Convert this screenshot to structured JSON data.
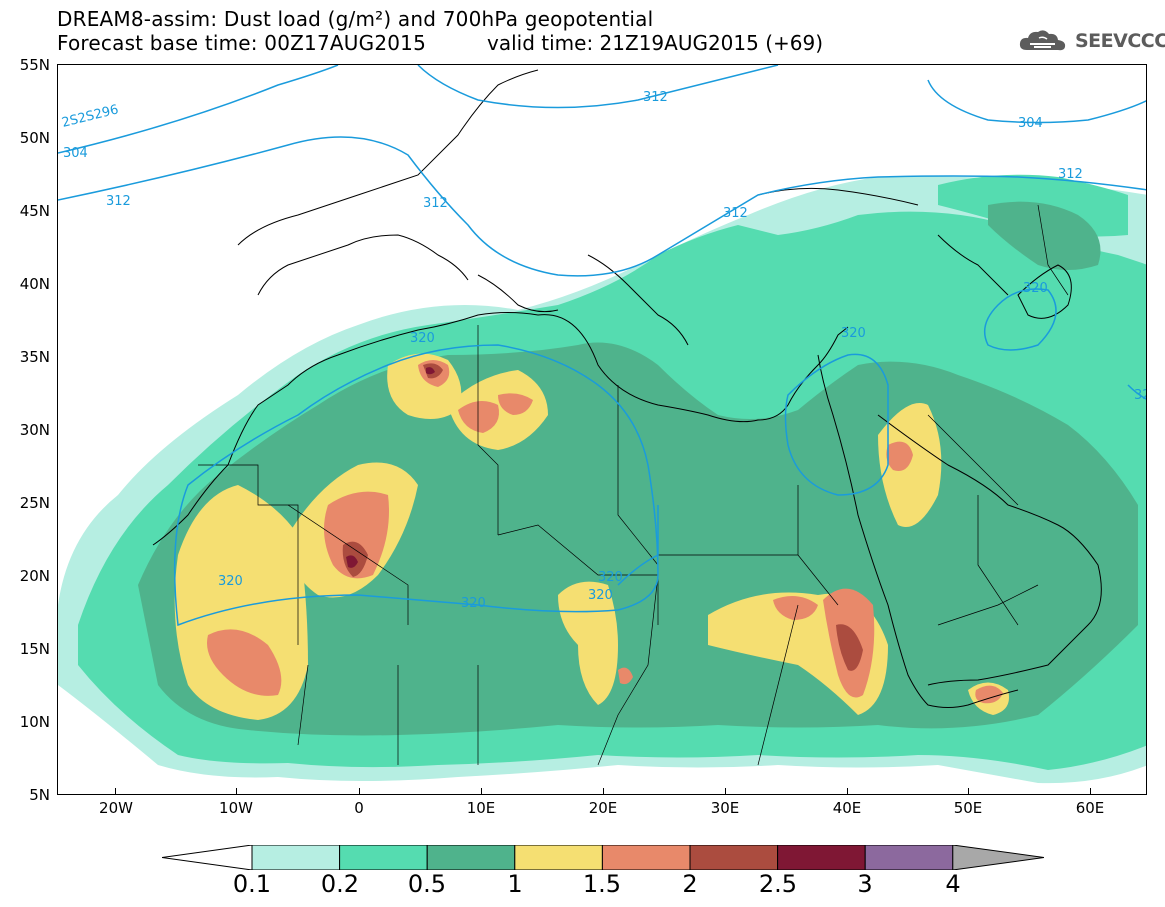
{
  "header": {
    "title": "DREAM8-assim: Dust load (g/m²) and 700hPa geopotential",
    "base_time": "Forecast base time: 00Z17AUG2015",
    "valid_time": "valid time: 21Z19AUG2015 (+69)"
  },
  "logo": {
    "text": "SEEVCCC",
    "icon": "cloud-icon"
  },
  "map": {
    "lat_labels": [
      "55N",
      "50N",
      "45N",
      "40N",
      "35N",
      "30N",
      "25N",
      "20N",
      "15N",
      "10N",
      "5N"
    ],
    "lon_labels": [
      "20W",
      "10W",
      "0",
      "10E",
      "20E",
      "30E",
      "40E",
      "50E",
      "60E"
    ],
    "contour_labels": [
      "2S2S296",
      "304",
      "312",
      "312",
      "312",
      "312",
      "312",
      "304",
      "320",
      "320",
      "320",
      "320",
      "320",
      "320",
      "32"
    ]
  },
  "colorbar": {
    "labels": [
      "0.1",
      "0.2",
      "0.5",
      "1",
      "1.5",
      "2",
      "2.5",
      "3",
      "4"
    ],
    "colors": [
      "#b6eee2",
      "#55dcb0",
      "#4fb38c",
      "#f5df72",
      "#e8896a",
      "#ab4c3f",
      "#7f1734",
      "#8c699e"
    ],
    "over_color": "#a8a8a8",
    "under_color": "#ffffff"
  }
}
